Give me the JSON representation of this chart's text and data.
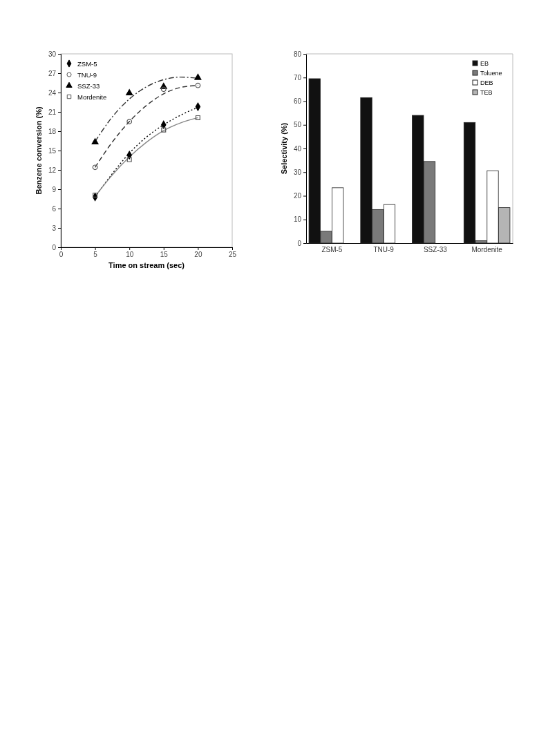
{
  "chart_data": [
    {
      "type": "scatter",
      "xlabel": "Time on stream (sec)",
      "ylabel": "Benzene conversion (%)",
      "xlim": [
        0,
        25
      ],
      "xticks": [
        0,
        5,
        10,
        15,
        20,
        25
      ],
      "ylim": [
        0,
        30
      ],
      "yticks": [
        0,
        3,
        6,
        9,
        12,
        15,
        18,
        21,
        24,
        27,
        30
      ],
      "legend": "top left",
      "grid": false,
      "series": [
        {
          "name": "ZSM-5",
          "color": "#000000",
          "marker": "diamond",
          "x": [
            5,
            10,
            15,
            20
          ],
          "values": [
            7.8,
            14.3,
            19.0,
            21.8
          ]
        },
        {
          "name": "TNU-9",
          "color": "#555555",
          "marker": "circle",
          "x": [
            5,
            10,
            15,
            20
          ],
          "values": [
            12.4,
            19.5,
            24.5,
            25.1
          ]
        },
        {
          "name": "SSZ-33",
          "color": "#000000",
          "marker": "triangle",
          "x": [
            5,
            10,
            15,
            20
          ],
          "values": [
            16.3,
            23.9,
            24.9,
            26.3
          ]
        },
        {
          "name": "Mordenite",
          "color": "#555555",
          "marker": "square",
          "x": [
            5,
            10,
            15,
            20
          ],
          "values": [
            8.1,
            13.6,
            18.2,
            20.1
          ]
        },
        {
          "type": "line",
          "color": "#000000",
          "line_style": "dotted",
          "x": [
            5,
            7.5,
            10,
            12.5,
            15,
            17.5,
            20
          ],
          "values": [
            7.8,
            11.4,
            14.6,
            17.1,
            19.0,
            20.5,
            21.7
          ]
        },
        {
          "type": "line",
          "color": "#333333",
          "line_style": "dashed",
          "x": [
            5,
            7.5,
            10,
            12.5,
            15,
            17.5,
            20
          ],
          "values": [
            12.4,
            16.3,
            19.5,
            22.0,
            23.8,
            24.8,
            25.1
          ]
        },
        {
          "type": "line",
          "color": "#333333",
          "line_style": "dashdot",
          "x": [
            5,
            7.5,
            10,
            12.5,
            15,
            17.5,
            20
          ],
          "values": [
            16.4,
            20.2,
            23.0,
            24.9,
            26.0,
            26.4,
            26.2
          ]
        },
        {
          "type": "line",
          "color": "#888888",
          "line_style": "solid",
          "x": [
            5,
            7.5,
            10,
            12.5,
            15,
            17.5,
            20
          ],
          "values": [
            7.9,
            11.2,
            14.0,
            16.3,
            18.1,
            19.3,
            20.1
          ]
        }
      ]
    },
    {
      "type": "bar",
      "ylabel": "Selectivity (%)",
      "categories": [
        "ZSM-5",
        "TNU-9",
        "SSZ-33",
        "Mordenite"
      ],
      "ylim": [
        0,
        80
      ],
      "yticks": [
        0,
        10,
        20,
        30,
        40,
        50,
        60,
        70,
        80
      ],
      "legend": "top right",
      "grid": false,
      "series": [
        {
          "name": "EB",
          "color": "#111111",
          "values": [
            69.5,
            61.5,
            54,
            51
          ]
        },
        {
          "name": "Toluene",
          "color": "#7a7a7a",
          "values": [
            5,
            14.2,
            34.5,
            1
          ]
        },
        {
          "name": "DEB",
          "color": "#ffffff",
          "values": [
            23.4,
            16.3,
            null,
            30.6
          ]
        },
        {
          "name": "TEB",
          "color": "#b5b5b5",
          "values": [
            null,
            null,
            null,
            15
          ]
        }
      ]
    }
  ]
}
